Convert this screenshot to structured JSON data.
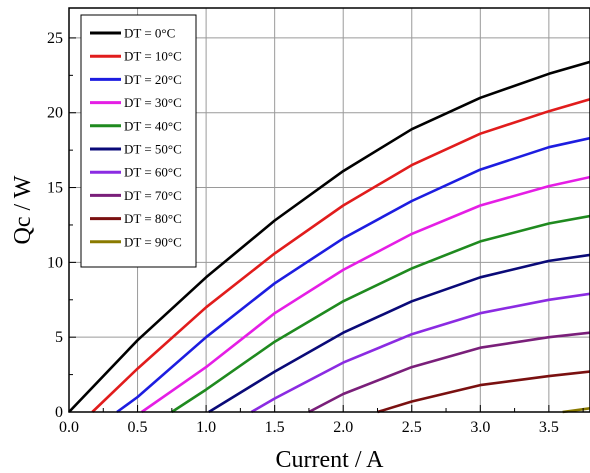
{
  "chart_data": {
    "type": "line",
    "title": "",
    "xlabel": "Current / A",
    "ylabel": "Qc / W",
    "xlim": [
      0,
      3.8
    ],
    "ylim": [
      0,
      27
    ],
    "xticks": [
      "0.0",
      "0.5",
      "1.0",
      "1.5",
      "2.0",
      "2.5",
      "3.0",
      "3.5"
    ],
    "yticks": [
      "0",
      "5",
      "10",
      "15",
      "20",
      "25"
    ],
    "grid": true,
    "legend_position": "top-left",
    "series": [
      {
        "name": "DT = 0°C",
        "color": "#000000",
        "x": [
          0.0,
          0.5,
          1.0,
          1.5,
          2.0,
          2.5,
          3.0,
          3.5,
          3.8
        ],
        "y": [
          0.0,
          4.8,
          9.0,
          12.8,
          16.1,
          18.9,
          21.0,
          22.6,
          23.4
        ]
      },
      {
        "name": "DT = 10°C",
        "color": "#e11c1c",
        "x": [
          0.17,
          0.5,
          1.0,
          1.5,
          2.0,
          2.5,
          3.0,
          3.5,
          3.8
        ],
        "y": [
          0.0,
          2.9,
          7.0,
          10.6,
          13.8,
          16.5,
          18.6,
          20.1,
          20.9
        ]
      },
      {
        "name": "DT = 20°C",
        "color": "#1d1de0",
        "x": [
          0.35,
          0.5,
          1.0,
          1.5,
          2.0,
          2.5,
          3.0,
          3.5,
          3.8
        ],
        "y": [
          0.0,
          1.0,
          5.0,
          8.6,
          11.6,
          14.1,
          16.2,
          17.7,
          18.3
        ]
      },
      {
        "name": "DT = 30°C",
        "color": "#e51ee5",
        "x": [
          0.53,
          1.0,
          1.5,
          2.0,
          2.5,
          3.0,
          3.5,
          3.8
        ],
        "y": [
          0.0,
          3.0,
          6.6,
          9.5,
          11.9,
          13.8,
          15.1,
          15.7
        ]
      },
      {
        "name": "DT = 40°C",
        "color": "#1f8a1f",
        "x": [
          0.75,
          1.0,
          1.5,
          2.0,
          2.5,
          3.0,
          3.5,
          3.8
        ],
        "y": [
          0.0,
          1.5,
          4.7,
          7.4,
          9.6,
          11.4,
          12.6,
          13.1
        ]
      },
      {
        "name": "DT = 50°C",
        "color": "#0a0a78",
        "x": [
          1.02,
          1.5,
          2.0,
          2.5,
          3.0,
          3.5,
          3.8
        ],
        "y": [
          0.0,
          2.7,
          5.3,
          7.4,
          9.0,
          10.1,
          10.5
        ]
      },
      {
        "name": "DT = 60°C",
        "color": "#8b2be2",
        "x": [
          1.33,
          1.5,
          2.0,
          2.5,
          3.0,
          3.5,
          3.8
        ],
        "y": [
          0.0,
          0.9,
          3.3,
          5.2,
          6.6,
          7.5,
          7.9
        ]
      },
      {
        "name": "DT = 70°C",
        "color": "#7a1f7a",
        "x": [
          1.75,
          2.0,
          2.5,
          3.0,
          3.5,
          3.8
        ],
        "y": [
          0.0,
          1.2,
          3.0,
          4.3,
          5.0,
          5.3
        ]
      },
      {
        "name": "DT = 80°C",
        "color": "#7a1010",
        "x": [
          2.25,
          2.5,
          3.0,
          3.5,
          3.8
        ],
        "y": [
          0.0,
          0.7,
          1.8,
          2.4,
          2.7
        ]
      },
      {
        "name": "DT = 90°C",
        "color": "#8a7a00",
        "x": [
          3.6,
          3.8
        ],
        "y": [
          0.0,
          0.25
        ]
      }
    ]
  }
}
